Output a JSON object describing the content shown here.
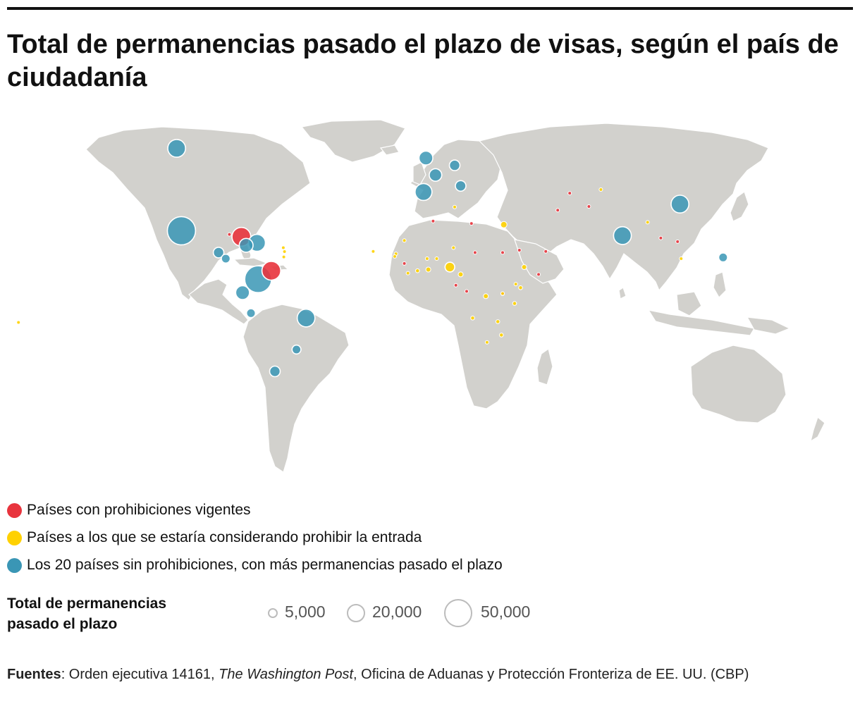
{
  "title": "Total de permanencias pasado el plazo de visas, según el país de ciudadanía",
  "colors": {
    "banned": "#e8343d",
    "considered": "#ffd100",
    "top20": "#3a96b5",
    "land": "#d2d1cd",
    "border": "#ffffff"
  },
  "legend": {
    "items": [
      {
        "key": "banned",
        "label": "Países con prohibiciones vigentes"
      },
      {
        "key": "considered",
        "label": "Países a los que se estaría considerando prohibir la entrada"
      },
      {
        "key": "top20",
        "label": "Los 20 países sin prohibiciones, con más permanencias pasado el plazo"
      }
    ],
    "size_title": "Total de permanencias pasado el plazo",
    "size_items": [
      {
        "value": 5000,
        "label": "5,000"
      },
      {
        "value": 20000,
        "label": "20,000"
      },
      {
        "value": 50000,
        "label": "50,000"
      }
    ]
  },
  "sources": {
    "label": "Fuentes",
    "part1": ": Orden ejecutiva 14161, ",
    "italic": "The Washington Post",
    "part2": ", Oficina de Aduanas y Protección Fronteriza de EE. UU. (CBP)"
  },
  "chart_data": {
    "type": "scatter",
    "projection": "equirectangular",
    "size_encoding": "total overstays",
    "points": [
      {
        "lon": -104,
        "lat": 24,
        "cat": "top20",
        "value": 50000
      },
      {
        "lon": -72,
        "lat": 4,
        "cat": "top20",
        "value": 45000
      },
      {
        "lon": -106,
        "lat": 58,
        "cat": "top20",
        "value": 20000
      },
      {
        "lon": -52,
        "lat": -12,
        "cat": "top20",
        "value": 20000
      },
      {
        "lon": 80,
        "lat": 22,
        "cat": "top20",
        "value": 20000
      },
      {
        "lon": 104,
        "lat": 35,
        "cat": "top20",
        "value": 20000
      },
      {
        "lon": -3,
        "lat": 40,
        "cat": "top20",
        "value": 18000
      },
      {
        "lon": -72.5,
        "lat": 19,
        "cat": "top20",
        "value": 18000
      },
      {
        "lon": -77,
        "lat": 18,
        "cat": "top20",
        "value": 12000
      },
      {
        "lon": -78.5,
        "lat": -1.5,
        "cat": "top20",
        "value": 12000
      },
      {
        "lon": -2,
        "lat": 54,
        "cat": "top20",
        "value": 12000
      },
      {
        "lon": 2,
        "lat": 47,
        "cat": "top20",
        "value": 10000
      },
      {
        "lon": 10,
        "lat": 51,
        "cat": "top20",
        "value": 7000
      },
      {
        "lon": 12.5,
        "lat": 42.5,
        "cat": "top20",
        "value": 7000
      },
      {
        "lon": -88.5,
        "lat": 15,
        "cat": "top20",
        "value": 7000
      },
      {
        "lon": -65,
        "lat": -34,
        "cat": "top20",
        "value": 7000
      },
      {
        "lon": 122,
        "lat": 13,
        "cat": "top20",
        "value": 5000
      },
      {
        "lon": -75,
        "lat": -10,
        "cat": "top20",
        "value": 5000
      },
      {
        "lon": -56,
        "lat": -25,
        "cat": "top20",
        "value": 5000
      },
      {
        "lon": -85.5,
        "lat": 12.5,
        "cat": "top20",
        "value": 5000
      },
      {
        "lon": -79,
        "lat": 21.5,
        "cat": "banned",
        "value": 22000
      },
      {
        "lon": -66.5,
        "lat": 7.5,
        "cat": "banned",
        "value": 22000
      },
      {
        "lon": -84,
        "lat": 22.5,
        "cat": "banned",
        "value": 700
      },
      {
        "lon": 1,
        "lat": 28,
        "cat": "banned",
        "value": 300
      },
      {
        "lon": 17,
        "lat": 27,
        "cat": "banned",
        "value": 700
      },
      {
        "lon": 18.5,
        "lat": 15,
        "cat": "banned",
        "value": 700
      },
      {
        "lon": 30,
        "lat": 15,
        "cat": "banned",
        "value": 700
      },
      {
        "lon": 37,
        "lat": 16,
        "cat": "banned",
        "value": 500
      },
      {
        "lon": 48,
        "lat": 15.5,
        "cat": "banned",
        "value": 700
      },
      {
        "lon": 45,
        "lat": 6,
        "cat": "banned",
        "value": 500
      },
      {
        "lon": -11,
        "lat": 10.5,
        "cat": "banned",
        "value": 700
      },
      {
        "lon": 10.5,
        "lat": 1.5,
        "cat": "banned",
        "value": 700
      },
      {
        "lon": 15,
        "lat": -1,
        "cat": "banned",
        "value": 700
      },
      {
        "lon": 30,
        "lat": -2,
        "cat": "banned",
        "value": 700
      },
      {
        "lon": 53,
        "lat": 32.5,
        "cat": "banned",
        "value": 700
      },
      {
        "lon": 66,
        "lat": 34,
        "cat": "banned",
        "value": 700
      },
      {
        "lon": 58,
        "lat": 39.5,
        "cat": "banned",
        "value": 300
      },
      {
        "lon": 96,
        "lat": 21,
        "cat": "banned",
        "value": 700
      },
      {
        "lon": 103,
        "lat": 19.5,
        "cat": "banned",
        "value": 500
      },
      {
        "lon": 30.5,
        "lat": 26.5,
        "cat": "considered",
        "value": 2500
      },
      {
        "lon": 8,
        "lat": 9,
        "cat": "considered",
        "value": 6000
      },
      {
        "lon": -1,
        "lat": 8,
        "cat": "considered",
        "value": 1500
      },
      {
        "lon": 2.5,
        "lat": 12.5,
        "cat": "considered",
        "value": 700
      },
      {
        "lon": 12.5,
        "lat": 6,
        "cat": "considered",
        "value": 1500
      },
      {
        "lon": 23,
        "lat": -3,
        "cat": "considered",
        "value": 1500
      },
      {
        "lon": 39,
        "lat": 9,
        "cat": "considered",
        "value": 1500
      },
      {
        "lon": 37.5,
        "lat": 0.5,
        "cat": "considered",
        "value": 1000
      },
      {
        "lon": 35,
        "lat": -6,
        "cat": "considered",
        "value": 1000
      },
      {
        "lon": 28,
        "lat": -13.5,
        "cat": "considered",
        "value": 1000
      },
      {
        "lon": 29.5,
        "lat": -19,
        "cat": "considered",
        "value": 1000
      },
      {
        "lon": 17.5,
        "lat": -12,
        "cat": "considered",
        "value": 1000
      },
      {
        "lon": 23.5,
        "lat": -22,
        "cat": "considered",
        "value": 700
      },
      {
        "lon": -14.5,
        "lat": 14.5,
        "cat": "considered",
        "value": 700
      },
      {
        "lon": -9.5,
        "lat": 6.5,
        "cat": "considered",
        "value": 500
      },
      {
        "lon": -5.5,
        "lat": 7.5,
        "cat": "considered",
        "value": 1000
      },
      {
        "lon": -1.5,
        "lat": 12.5,
        "cat": "considered",
        "value": 700
      },
      {
        "lon": -11,
        "lat": 20,
        "cat": "considered",
        "value": 500
      },
      {
        "lon": -15,
        "lat": 13.4,
        "cat": "considered",
        "value": 300
      },
      {
        "lon": 9.5,
        "lat": 17,
        "cat": "considered",
        "value": 500
      },
      {
        "lon": -61.5,
        "lat": 17,
        "cat": "considered",
        "value": 200
      },
      {
        "lon": -61,
        "lat": 15.4,
        "cat": "considered",
        "value": 200
      },
      {
        "lon": -61.3,
        "lat": 13.2,
        "cat": "considered",
        "value": 200
      },
      {
        "lon": -24,
        "lat": 15.5,
        "cat": "considered",
        "value": 200
      },
      {
        "lon": 90.5,
        "lat": 27.5,
        "cat": "considered",
        "value": 300
      },
      {
        "lon": 104.5,
        "lat": 12.5,
        "cat": "considered",
        "value": 700
      },
      {
        "lon": 71,
        "lat": 41,
        "cat": "considered",
        "value": 700
      },
      {
        "lon": -172,
        "lat": -13.8,
        "cat": "considered",
        "value": 150
      },
      {
        "lon": 30,
        "lat": -1.9,
        "cat": "considered",
        "value": 300
      },
      {
        "lon": 10,
        "lat": 33.8,
        "cat": "considered",
        "value": 300
      },
      {
        "lon": 35.5,
        "lat": 2,
        "cat": "considered",
        "value": 500
      }
    ]
  }
}
